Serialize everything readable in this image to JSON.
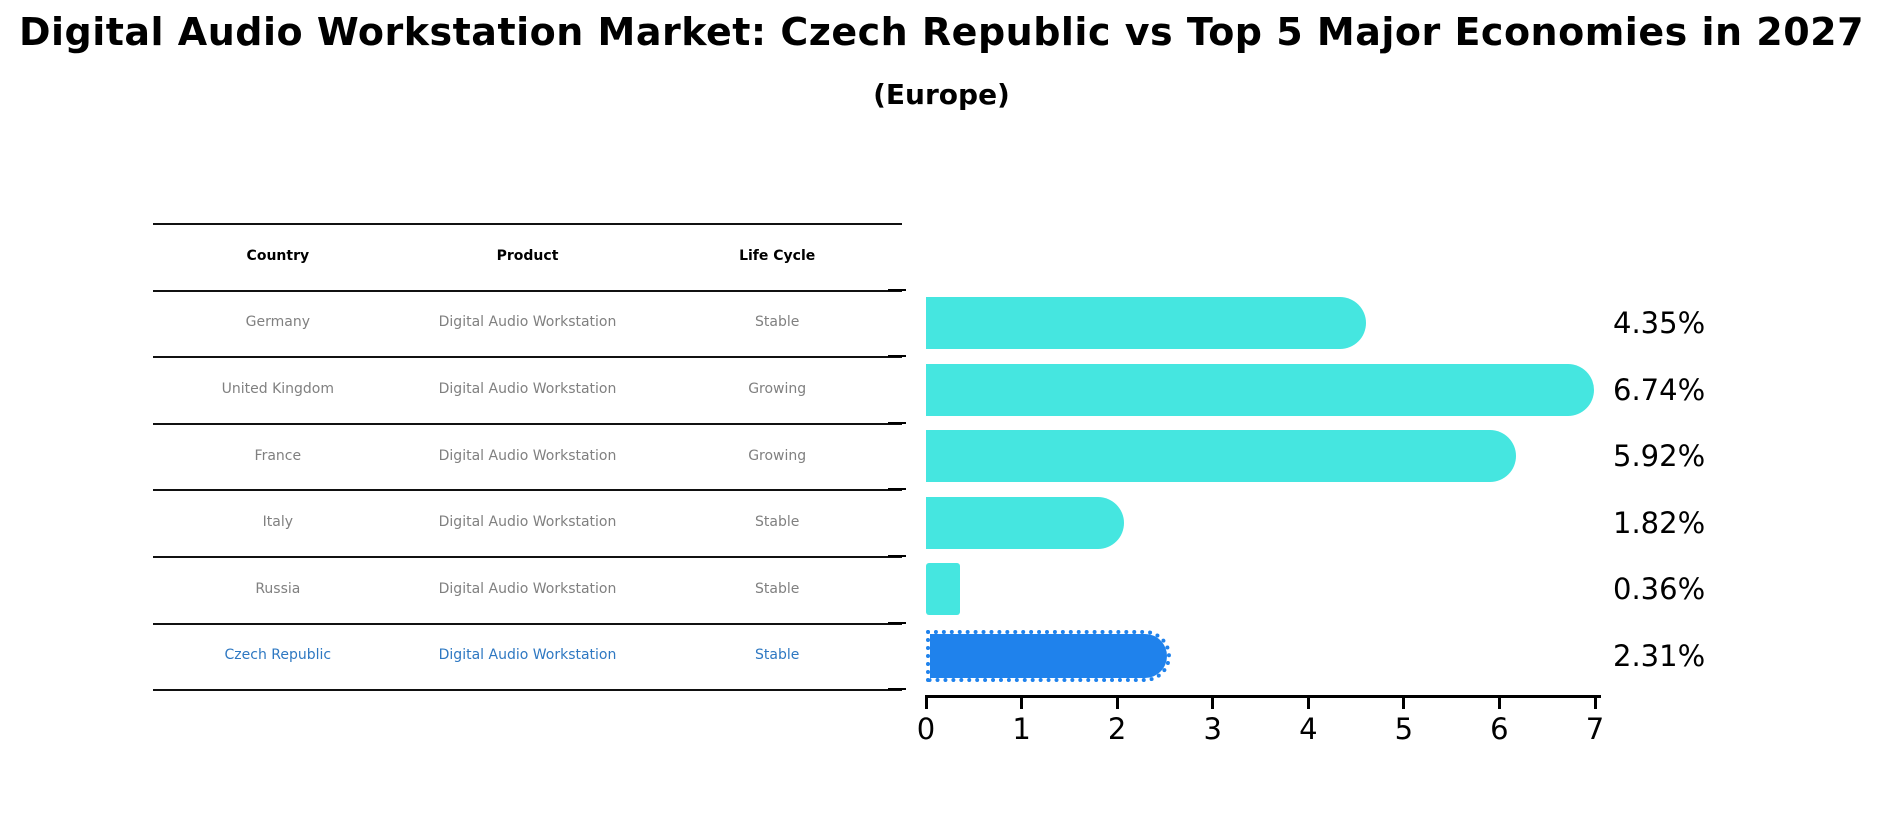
{
  "title": "Digital Audio Workstation Market: Czech Republic vs Top 5 Major Economies in 2027",
  "subtitle": "(Europe)",
  "table": {
    "columns": [
      "Country",
      "Product",
      "Life Cycle"
    ],
    "rows": [
      {
        "country": "Germany",
        "product": "Digital Audio Workstation",
        "life_cycle": "Stable",
        "highlight": false
      },
      {
        "country": "United Kingdom",
        "product": "Digital Audio Workstation",
        "life_cycle": "Growing",
        "highlight": false
      },
      {
        "country": "France",
        "product": "Digital Audio Workstation",
        "life_cycle": "Growing",
        "highlight": false
      },
      {
        "country": "Italy",
        "product": "Digital Audio Workstation",
        "life_cycle": "Stable",
        "highlight": false
      },
      {
        "country": "Russia",
        "product": "Digital Audio Workstation",
        "life_cycle": "Stable",
        "highlight": false
      },
      {
        "country": "Czech Republic",
        "product": "Digital Audio Workstation",
        "life_cycle": "Stable",
        "highlight": true
      }
    ]
  },
  "chart_data": {
    "type": "bar",
    "orientation": "horizontal",
    "title": "Digital Audio Workstation Market: Czech Republic vs Top 5 Major Economies in 2027",
    "subtitle": "(Europe)",
    "xlabel": "",
    "ylabel": "",
    "categories": [
      "Germany",
      "United Kingdom",
      "France",
      "Italy",
      "Russia",
      "Czech Republic"
    ],
    "values": [
      4.35,
      6.74,
      5.92,
      1.82,
      0.36,
      2.31
    ],
    "value_labels": [
      "4.35%",
      "6.74%",
      "5.92%",
      "1.82%",
      "0.36%",
      "2.31%"
    ],
    "xlim": [
      0,
      7
    ],
    "x_ticks": [
      "0",
      "1",
      "2",
      "3",
      "4",
      "5",
      "6",
      "7"
    ],
    "grid": false,
    "legend": false,
    "bar_color": "#45e6e0",
    "highlight_color": "#1f82ec",
    "highlight_index": 5
  },
  "colors": {
    "bar": "#45e6e0",
    "highlight": "#1f82ec",
    "highlight_text": "#2e78c2",
    "row_text": "#808080",
    "line": "#111111"
  }
}
